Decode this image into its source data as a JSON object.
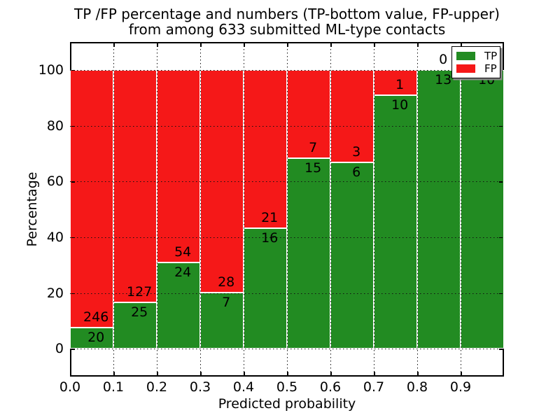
{
  "figure": {
    "title_line1": "TP /FP percentage and numbers (TP-bottom value, FP-upper)",
    "title_line2": "from among 633 submitted ML-type contacts"
  },
  "chart_data": {
    "type": "bar",
    "stacked": true,
    "normalization": "each bin stacked to 100 percent of bin total",
    "title": "TP /FP percentage and numbers (TP-bottom value, FP-upper) from among 633 submitted ML-type contacts",
    "total_contacts": 633,
    "xlabel": "Predicted probability",
    "ylabel": "Percentage",
    "bin_edges": [
      0.0,
      0.1,
      0.2,
      0.3,
      0.4,
      0.5,
      0.6,
      0.7,
      0.8,
      0.9,
      1.0
    ],
    "categories": [
      "0.0-0.1",
      "0.1-0.2",
      "0.2-0.3",
      "0.3-0.4",
      "0.4-0.5",
      "0.5-0.6",
      "0.6-0.7",
      "0.7-0.8",
      "0.8-0.9",
      "0.9-1.0"
    ],
    "series": [
      {
        "name": "TP",
        "color": "#228b22",
        "values": [
          20,
          25,
          24,
          7,
          16,
          15,
          6,
          10,
          13,
          10
        ]
      },
      {
        "name": "FP",
        "color": "#f51818",
        "values": [
          246,
          127,
          54,
          28,
          21,
          7,
          3,
          1,
          0,
          0
        ]
      }
    ],
    "tp_percent_of_bin": [
      7.5,
      16.4,
      30.8,
      20.0,
      43.2,
      68.2,
      66.7,
      90.9,
      100.0,
      100.0
    ],
    "xticks": [
      "0.0",
      "0.1",
      "0.2",
      "0.3",
      "0.4",
      "0.5",
      "0.6",
      "0.7",
      "0.8",
      "0.9"
    ],
    "yticks": [
      "0",
      "20",
      "40",
      "60",
      "80",
      "100"
    ],
    "xlim": [
      0.0,
      1.0
    ],
    "ylim": [
      -10,
      110
    ],
    "grid": "dotted, both axes",
    "legend": {
      "position": "upper right",
      "entries": [
        {
          "label": "TP",
          "color": "#228b22"
        },
        {
          "label": "FP",
          "color": "#f51818"
        }
      ]
    }
  }
}
